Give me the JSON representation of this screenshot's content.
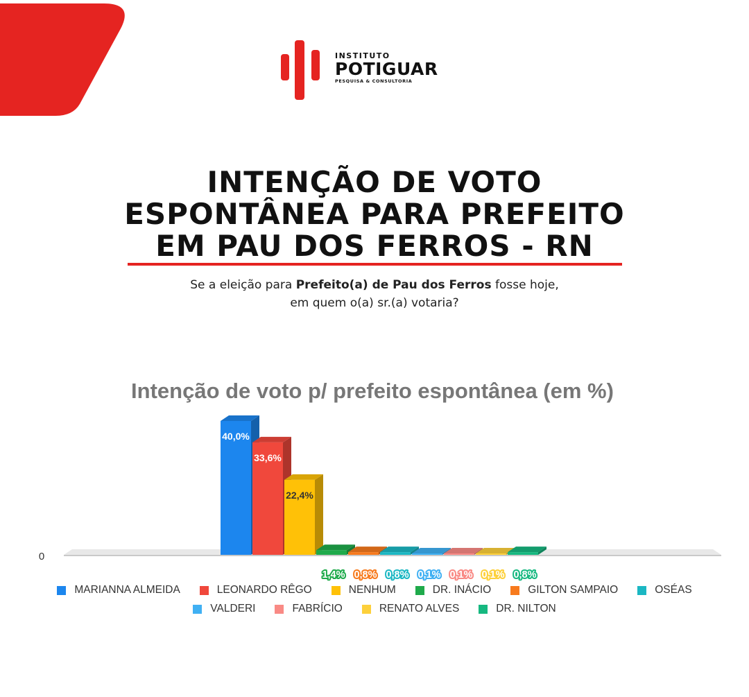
{
  "brand": {
    "top_line": "INSTITUTO",
    "name": "POTIGUAR",
    "tagline": "PESQUISA & CONSULTORIA",
    "accent_color": "#e52421"
  },
  "headline": {
    "line1": "INTENÇÃO DE VOTO",
    "line2": "ESPONTÂNEA PARA PREFEITO",
    "line3": "EM PAU DOS FERROS - RN"
  },
  "question": {
    "prefix": "Se a eleição para ",
    "emphasis": "Prefeito(a) de Pau dos Ferros",
    "suffix": " fosse hoje,",
    "line2": "em quem o(a) sr.(a) votaria?"
  },
  "chart_data": {
    "type": "bar",
    "title": "Intenção de voto p/ prefeito espontânea (em %)",
    "y_tick_labels": [
      "0"
    ],
    "ylim": [
      0,
      40
    ],
    "grid": false,
    "legend_placement": "bottom",
    "categories": [
      "MARIANNA ALMEIDA",
      "LEONARDO RÊGO",
      "NENHUM",
      "DR. INÁCIO",
      "GILTON SAMPAIO",
      "OSÉAS",
      "VALDERI",
      "FABRÍCIO",
      "RENATO ALVES",
      "DR. NILTON"
    ],
    "values": [
      40.0,
      33.6,
      22.4,
      1.4,
      0.8,
      0.8,
      0.1,
      0.1,
      0.1,
      0.8
    ],
    "labels": [
      "40,0%",
      "33,6%",
      "22,4%",
      "1,4%",
      "0,8%",
      "0,8%",
      "0,1%",
      "0,1%",
      "0,1%",
      "0,8%"
    ],
    "colors": [
      "#1c86ee",
      "#f0483c",
      "#ffc107",
      "#1faa4b",
      "#f77a1d",
      "#1bb7c3",
      "#40b0f3",
      "#f98a85",
      "#fdd03b",
      "#16b880"
    ]
  }
}
